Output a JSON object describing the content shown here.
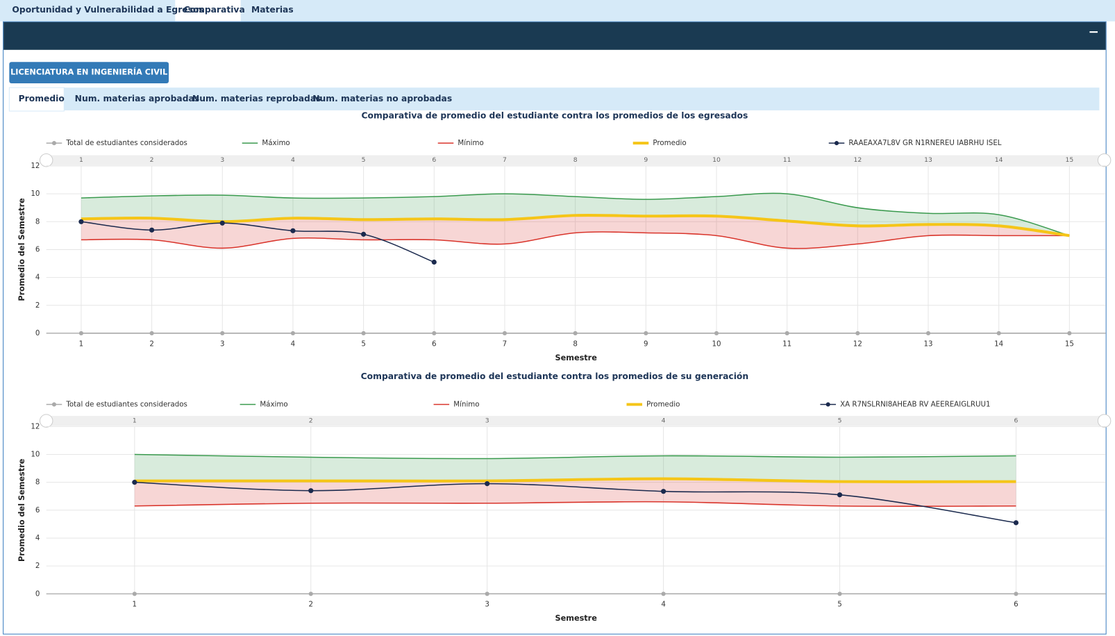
{
  "tabs": [
    "Oportunidad y Vulnerabilidad a Egresos",
    "Comparativa",
    "Materias"
  ],
  "header": {
    "collapse": "−"
  },
  "program_button": "LICENCIATURA EN INGENIERÍA CIVIL",
  "subtabs": [
    "Promedio",
    "Num. materias aprobadas",
    "Num. materias reprobadas",
    "Num. materias no aprobadas"
  ],
  "chart_data": [
    {
      "type": "line",
      "title": "Comparativa de promedio del estudiante contra los promedios de los egresados",
      "xlabel": "Semestre",
      "ylabel": "Promedio del Semestre",
      "x": [
        1,
        2,
        3,
        4,
        5,
        6,
        7,
        8,
        9,
        10,
        11,
        12,
        13,
        14,
        15
      ],
      "xlim": [
        1,
        15
      ],
      "xticks": [
        1,
        2,
        3,
        4,
        5,
        6,
        7,
        8,
        9,
        10,
        11,
        12,
        13,
        14,
        15
      ],
      "ylim": [
        0,
        12
      ],
      "yticks": [
        0,
        2,
        4,
        6,
        8,
        10,
        12
      ],
      "grid": true,
      "series": [
        {
          "name": "Total de estudiantes considerados",
          "color": "#aaaaaa",
          "values": [
            0,
            0,
            0,
            0,
            0,
            0,
            0,
            0,
            0,
            0,
            0,
            0,
            0,
            0,
            0
          ]
        },
        {
          "name": "Máximo",
          "color": "#3a9a4e",
          "values": [
            9.7,
            9.85,
            9.9,
            9.7,
            9.7,
            9.8,
            10.0,
            9.8,
            9.6,
            9.8,
            10.0,
            9.0,
            8.6,
            8.5,
            7.0
          ]
        },
        {
          "name": "Mínimo",
          "color": "#d9342b",
          "values": [
            6.7,
            6.7,
            6.1,
            6.8,
            6.7,
            6.7,
            6.4,
            7.2,
            7.2,
            7.0,
            6.1,
            6.4,
            7.0,
            7.0,
            7.0
          ]
        },
        {
          "name": "Promedio",
          "color": "#f5c518",
          "values": [
            8.2,
            8.25,
            8.0,
            8.25,
            8.15,
            8.2,
            8.15,
            8.45,
            8.4,
            8.4,
            8.05,
            7.7,
            7.8,
            7.7,
            7.0
          ]
        },
        {
          "name": "RAAEAXA7L8V GR N1RNEREU IABRHU ISEL",
          "color": "#1b2a4e",
          "values": [
            8.0,
            7.4,
            7.9,
            7.35,
            7.1,
            5.1,
            null,
            null,
            null,
            null,
            null,
            null,
            null,
            null,
            null
          ]
        }
      ]
    },
    {
      "type": "line",
      "title": "Comparativa de promedio del estudiante contra los promedios de su generación",
      "xlabel": "Semestre",
      "ylabel": "Promedio del Semestre",
      "x": [
        1,
        2,
        3,
        4,
        5,
        6
      ],
      "xlim": [
        1,
        6
      ],
      "xticks": [
        1,
        2,
        3,
        4,
        5,
        6
      ],
      "ylim": [
        0,
        12
      ],
      "yticks": [
        0,
        2,
        4,
        6,
        8,
        10,
        12
      ],
      "grid": true,
      "series": [
        {
          "name": "Total de estudiantes considerados",
          "color": "#aaaaaa",
          "values": [
            0,
            0,
            0,
            0,
            0,
            0
          ]
        },
        {
          "name": "Máximo",
          "color": "#3a9a4e",
          "values": [
            10.0,
            9.8,
            9.7,
            9.9,
            9.8,
            9.9
          ]
        },
        {
          "name": "Mínimo",
          "color": "#d9342b",
          "values": [
            6.3,
            6.5,
            6.5,
            6.6,
            6.3,
            6.3
          ]
        },
        {
          "name": "Promedio",
          "color": "#f5c518",
          "values": [
            8.1,
            8.1,
            8.1,
            8.25,
            8.05,
            8.05
          ]
        },
        {
          "name": "XA R7NSLRNI8AHEAB RV AEEREAIGLRUU1",
          "color": "#1b2a4e",
          "values": [
            8.0,
            7.4,
            7.9,
            7.35,
            7.1,
            5.1
          ]
        }
      ]
    }
  ]
}
